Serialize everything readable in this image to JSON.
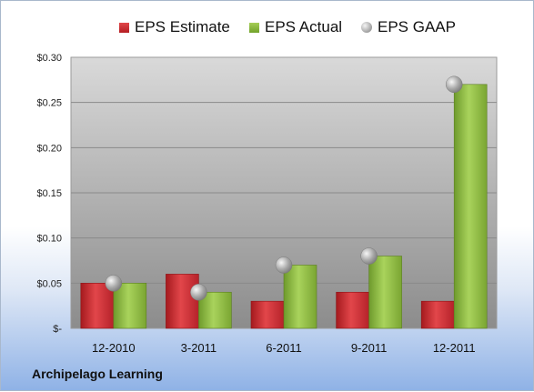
{
  "chart_data": {
    "type": "bar",
    "categories": [
      "12-2010",
      "3-2011",
      "6-2011",
      "9-2011",
      "12-2011"
    ],
    "series": [
      {
        "name": "EPS Estimate",
        "values": [
          0.05,
          0.06,
          0.03,
          0.04,
          0.03
        ],
        "color": "#c8282c"
      },
      {
        "name": "EPS Actual",
        "values": [
          0.05,
          0.04,
          0.07,
          0.08,
          0.27
        ],
        "color": "#8cb843"
      },
      {
        "name": "EPS GAAP",
        "values": [
          0.05,
          0.04,
          0.07,
          0.08,
          0.27
        ],
        "color": "#b0b0b0",
        "marker": "sphere"
      }
    ],
    "yticks": [
      {
        "value": 0.3,
        "label": "$0.30"
      },
      {
        "value": 0.25,
        "label": "$0.25"
      },
      {
        "value": 0.2,
        "label": "$0.20"
      },
      {
        "value": 0.15,
        "label": "$0.15"
      },
      {
        "value": 0.1,
        "label": "$0.10"
      },
      {
        "value": 0.05,
        "label": "$0.05"
      },
      {
        "value": 0,
        "label": "$-"
      }
    ],
    "ylim": [
      0,
      0.3
    ],
    "grid": true,
    "legend": "top",
    "xlabel": "",
    "ylabel": ""
  },
  "legend": {
    "estimate": "EPS Estimate",
    "actual": "EPS Actual",
    "gaap": "EPS GAAP"
  },
  "company": "Archipelago Learning"
}
